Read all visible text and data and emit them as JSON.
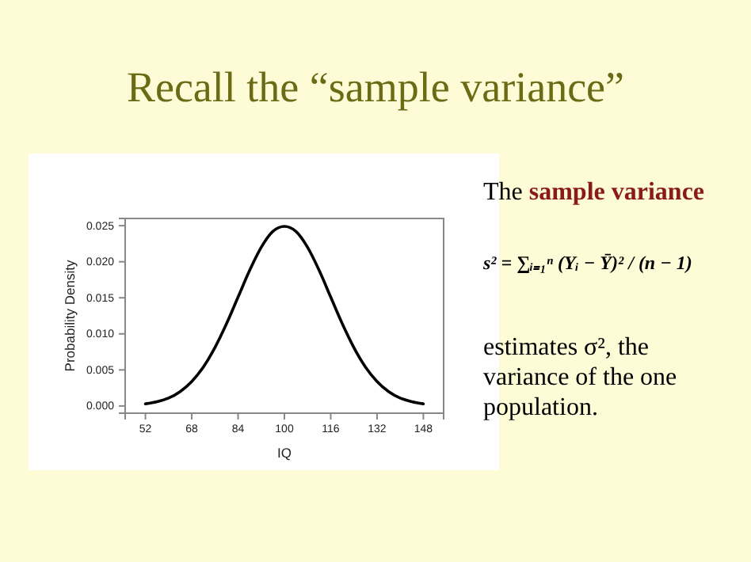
{
  "chart_data": {
    "type": "line",
    "title": "Recall the “sample variance”",
    "xlabel": "IQ",
    "ylabel": "Probability Density",
    "x": [
      52,
      56,
      60,
      64,
      68,
      72,
      76,
      80,
      84,
      88,
      92,
      96,
      100,
      104,
      108,
      112,
      116,
      120,
      124,
      128,
      132,
      136,
      140,
      144,
      148
    ],
    "series": [
      {
        "color": "#000000",
        "values": [
          0.0003,
          0.0006,
          0.0011,
          0.002,
          0.0034,
          0.0054,
          0.0081,
          0.0114,
          0.0151,
          0.0188,
          0.022,
          0.0242,
          0.0249,
          0.0242,
          0.022,
          0.0188,
          0.0151,
          0.0114,
          0.0081,
          0.0054,
          0.0034,
          0.002,
          0.0011,
          0.0006,
          0.0003
        ]
      }
    ],
    "xlim": [
      45,
      155
    ],
    "xticks": [
      52,
      68,
      84,
      100,
      116,
      132,
      148
    ],
    "ylim": [
      -0.001,
      0.026
    ],
    "yticks": [
      {
        "value": 0,
        "label": "0.000"
      },
      {
        "value": 0.005,
        "label": "0.005"
      },
      {
        "value": 0.01,
        "label": "0.010"
      },
      {
        "value": 0.015,
        "label": "0.015"
      },
      {
        "value": 0.02,
        "label": "0.020"
      },
      {
        "value": 0.025,
        "label": "0.025"
      }
    ],
    "grid": false,
    "marker": "none",
    "line_style": "solid",
    "annotations": [
      "The",
      "sample variance",
      "s² = ∑ᵢ₌₁ⁿ (Yᵢ − Ȳ)² / (n − 1)",
      "estimates σ², the variance of the one population."
    ]
  }
}
